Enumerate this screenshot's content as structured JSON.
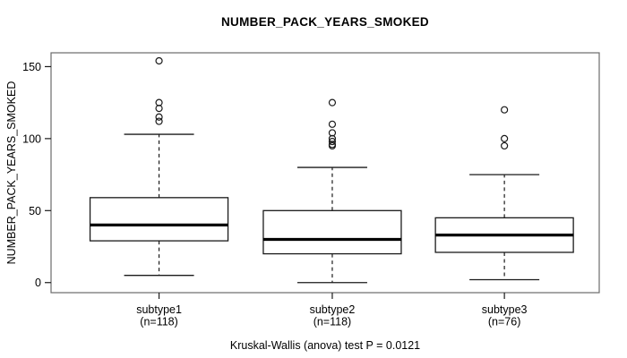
{
  "chart_data": {
    "type": "boxplot",
    "title": "NUMBER_PACK_YEARS_SMOKED",
    "ylabel": "NUMBER_PACK_YEARS_SMOKED",
    "annotation": "Kruskal-Wallis (anova) test P = 0.0121",
    "categories": [
      "subtype1",
      "subtype2",
      "subtype3"
    ],
    "yticks": [
      0,
      50,
      100,
      150
    ],
    "ylim": [
      -7,
      159.6
    ],
    "grid": false,
    "legend": false,
    "groups": [
      {
        "label": "subtype1",
        "sublabel": "(n=118)",
        "n": 118,
        "whisker_low": 5,
        "q1": 29,
        "median": 40,
        "q3": 59,
        "whisker_high": 103,
        "outliers": [
          112,
          115,
          121,
          125,
          154
        ]
      },
      {
        "label": "subtype2",
        "sublabel": "(n=118)",
        "n": 118,
        "whisker_low": 0,
        "q1": 20,
        "median": 30,
        "q3": 50,
        "whisker_high": 80,
        "outliers": [
          95,
          96,
          98,
          100,
          104,
          110,
          125
        ]
      },
      {
        "label": "subtype3",
        "sublabel": "(n=76)",
        "n": 76,
        "whisker_low": 2,
        "q1": 21,
        "median": 33,
        "q3": 45,
        "whisker_high": 75,
        "outliers": [
          95,
          100,
          120
        ]
      }
    ],
    "colors": {
      "background": "#ffffff",
      "frame": "#6b6b6b",
      "line": "#1a1a1a",
      "median": "#000000",
      "text": "#000000"
    }
  }
}
